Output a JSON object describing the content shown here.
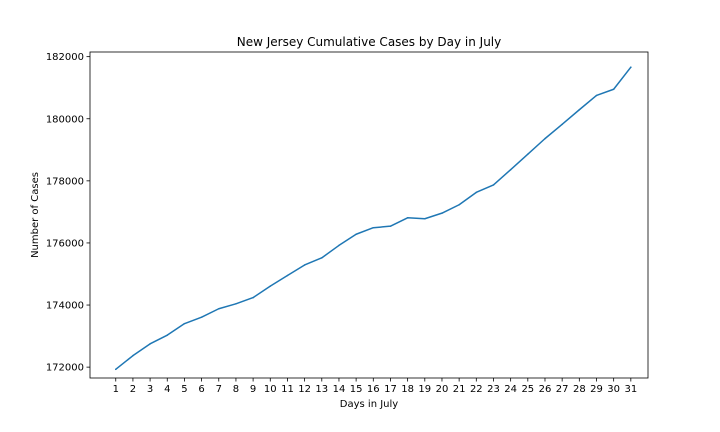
{
  "chart_data": {
    "type": "line",
    "title": "New Jersey Cumulative Cases by Day in July",
    "xlabel": "Days in July",
    "ylabel": "Number of Cases",
    "x": [
      1,
      2,
      3,
      4,
      5,
      6,
      7,
      8,
      9,
      10,
      11,
      12,
      13,
      14,
      15,
      16,
      17,
      18,
      19,
      20,
      21,
      22,
      23,
      24,
      25,
      26,
      27,
      28,
      29,
      30,
      31
    ],
    "series": [
      {
        "values": [
          171930,
          172370,
          172750,
          173030,
          173400,
          173610,
          173880,
          174040,
          174240,
          174610,
          174950,
          175290,
          175520,
          175920,
          176280,
          176490,
          176540,
          176810,
          176780,
          176960,
          177230,
          177630,
          177870,
          178360,
          178860,
          179360,
          179820,
          180290,
          180750,
          180950,
          181660
        ]
      }
    ],
    "xticks": [
      "1",
      "2",
      "3",
      "4",
      "5",
      "6",
      "7",
      "8",
      "9",
      "10",
      "11",
      "12",
      "13",
      "14",
      "15",
      "16",
      "17",
      "18",
      "19",
      "20",
      "21",
      "22",
      "23",
      "24",
      "25",
      "26",
      "27",
      "28",
      "29",
      "30",
      "31"
    ],
    "yticks": [
      172000,
      174000,
      176000,
      178000,
      180000,
      182000
    ],
    "ytick_labels": [
      "172000",
      "174000",
      "176000",
      "178000",
      "180000",
      "182000"
    ],
    "ylim": [
      171650,
      182150
    ],
    "xlim": [
      -0.5,
      32
    ],
    "grid": false,
    "colors": {
      "line": "#1f77b4",
      "axes": "#000000",
      "background": "#ffffff"
    }
  }
}
